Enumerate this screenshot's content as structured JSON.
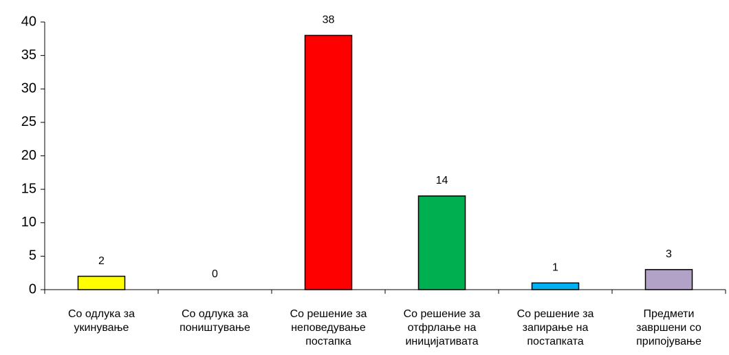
{
  "chart_data": {
    "type": "bar",
    "categories": [
      "Со одлука за укинување",
      "Со одлука за поништување",
      "Со решение за неповедување постапка",
      "Со решение за отфрлање на иницијативата",
      "Со решение за запирање на постапката",
      "Предмети завршени со припојување"
    ],
    "values": [
      2,
      0,
      38,
      14,
      1,
      3
    ],
    "colors": [
      "#ffff00",
      "#ffffff",
      "#ff0000",
      "#00b050",
      "#00b0f0",
      "#b3a2c7"
    ],
    "ylim": [
      0,
      40
    ],
    "yticks": [
      0,
      5,
      10,
      15,
      20,
      25,
      30,
      35,
      40
    ],
    "grid": false
  }
}
